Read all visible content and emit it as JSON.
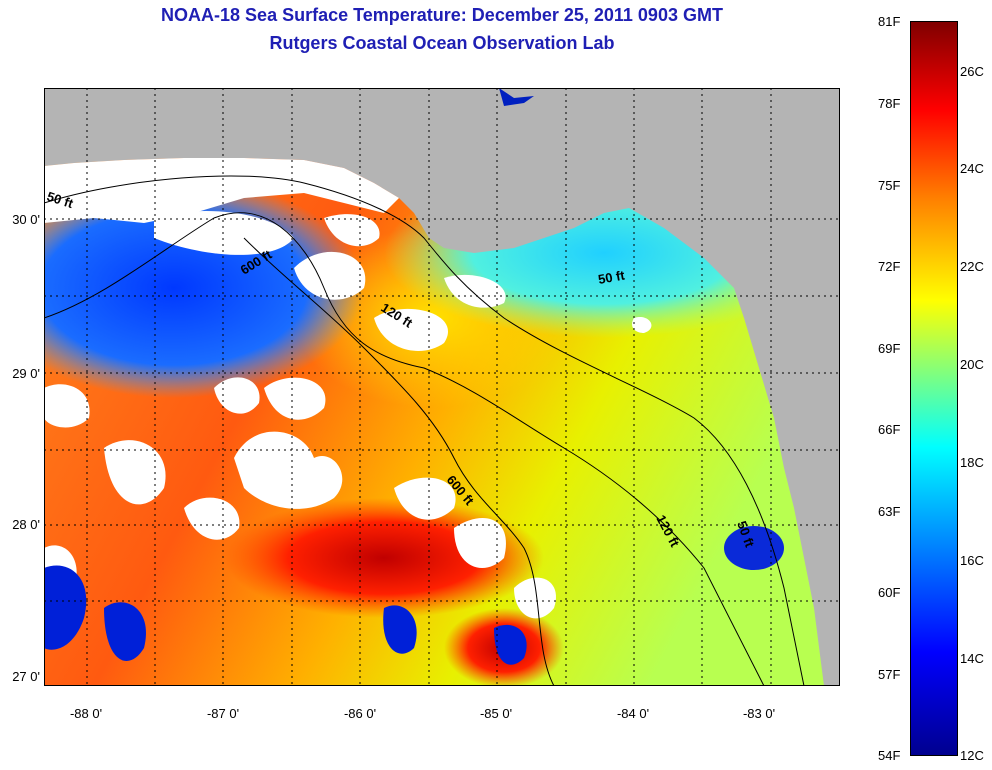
{
  "title": {
    "line1": "NOAA-18 Sea Surface Temperature:  December 25, 2011 0903 GMT",
    "line2": "Rutgers Coastal Ocean Observation Lab"
  },
  "map": {
    "extent": {
      "lon_min": -88.3,
      "lon_max": -82.5,
      "lat_min": 26.93,
      "lat_max": 30.85
    },
    "lat_ticks": [
      {
        "value": 30.0,
        "label": "30 0'"
      },
      {
        "value": 29.0,
        "label": "29 0'"
      },
      {
        "value": 28.0,
        "label": "28 0'"
      },
      {
        "value": 27.0,
        "label": "27 0'"
      }
    ],
    "lon_ticks": [
      {
        "value": -88.0,
        "label": "-88 0'"
      },
      {
        "value": -87.0,
        "label": "-87 0'"
      },
      {
        "value": -86.0,
        "label": "-86 0'"
      },
      {
        "value": -85.0,
        "label": "-85 0'"
      },
      {
        "value": -84.0,
        "label": "-84 0'"
      },
      {
        "value": -83.0,
        "label": "-83 0'"
      }
    ],
    "contour_labels": [
      "50 ft",
      "600 ft",
      "120 ft",
      "50 ft",
      "600 ft",
      "120 ft",
      "50 ft"
    ],
    "colors": {
      "land": "#b4b4b4",
      "cloud": "#ffffff",
      "grid": "#000000"
    }
  },
  "colorbar": {
    "fahrenheit": [
      {
        "value": 81,
        "label": "81F"
      },
      {
        "value": 78,
        "label": "78F"
      },
      {
        "value": 75,
        "label": "75F"
      },
      {
        "value": 72,
        "label": "72F"
      },
      {
        "value": 69,
        "label": "69F"
      },
      {
        "value": 66,
        "label": "66F"
      },
      {
        "value": 63,
        "label": "63F"
      },
      {
        "value": 60,
        "label": "60F"
      },
      {
        "value": 57,
        "label": "57F"
      },
      {
        "value": 54,
        "label": "54F"
      }
    ],
    "celsius": [
      {
        "value": 26,
        "label": "26C"
      },
      {
        "value": 24,
        "label": "24C"
      },
      {
        "value": 22,
        "label": "22C"
      },
      {
        "value": 20,
        "label": "20C"
      },
      {
        "value": 18,
        "label": "18C"
      },
      {
        "value": 16,
        "label": "16C"
      },
      {
        "value": 14,
        "label": "14C"
      },
      {
        "value": 12,
        "label": "12C"
      }
    ],
    "range_f": [
      54,
      81
    ]
  }
}
